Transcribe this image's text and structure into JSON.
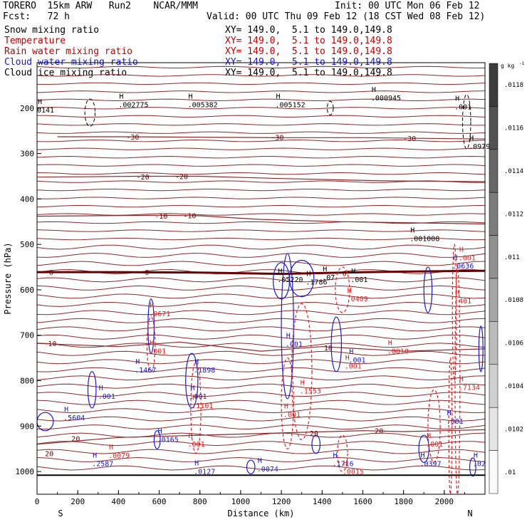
{
  "header": {
    "model": "TORERO  15km ARW   Run2    NCAR/MMM",
    "init": "Init: 00 UTC Mon 06 Feb 12",
    "fcst": "Fcst:   72 h",
    "valid": "Valid: 00 UTC Thu 09 Feb 12 (18 CST Wed 08 Feb 12)"
  },
  "fields": [
    {
      "name": "Snow mixing ratio",
      "xy": "XY= 149.0,  5.1 to 149.0,149.8",
      "color": "#000000"
    },
    {
      "name": "Temperature",
      "xy": "XY= 149.0,  5.1 to 149.0,149.8",
      "color": "#c00000"
    },
    {
      "name": "Rain water mixing ratio",
      "xy": "XY= 149.0,  5.1 to 149.0,149.8",
      "color": "#c00000"
    },
    {
      "name": "Cloud water mixing ratio",
      "xy": "XY= 149.0,  5.1 to 149.0,149.8",
      "color": "#1a1acc"
    },
    {
      "name": "Cloud ice mixing ratio",
      "xy": "XY= 149.0,  5.1 to 149.0,149.8",
      "color": "#000000"
    }
  ],
  "chart_data": {
    "type": "contour-cross-section",
    "xlabel": "Distance (km)",
    "ylabel": "Pressure (hPa)",
    "xlim": [
      0,
      2200
    ],
    "ylim": [
      1050,
      100
    ],
    "x_ticks": [
      0,
      200,
      400,
      600,
      800,
      1000,
      1200,
      1400,
      1600,
      1800,
      2000
    ],
    "y_ticks": [
      200,
      300,
      400,
      500,
      600,
      700,
      800,
      900,
      1000
    ],
    "endpoint_labels": {
      "left": "S",
      "right": "N"
    },
    "temperature_contours": [
      {
        "label": "-30",
        "points": [
          [
            100,
            263
          ],
          [
            400,
            263
          ],
          [
            1200,
            265
          ],
          [
            1600,
            265
          ],
          [
            2200,
            268
          ]
        ]
      },
      {
        "label": "-20",
        "points": [
          [
            0,
            352
          ],
          [
            500,
            350
          ],
          [
            800,
            350
          ],
          [
            1200,
            355
          ],
          [
            1700,
            360
          ],
          [
            2200,
            362
          ]
        ]
      },
      {
        "label": "-10",
        "points": [
          [
            0,
            438
          ],
          [
            600,
            436
          ],
          [
            800,
            437
          ],
          [
            1100,
            445
          ],
          [
            1500,
            450
          ],
          [
            2200,
            455
          ]
        ]
      },
      {
        "label": "0",
        "points": [
          [
            0,
            561
          ],
          [
            400,
            561
          ],
          [
            800,
            562
          ],
          [
            1200,
            565
          ],
          [
            1500,
            562
          ],
          [
            1800,
            560
          ],
          [
            2200,
            558
          ]
        ]
      },
      {
        "label": "10",
        "points": [
          [
            0,
            718
          ],
          [
            400,
            725
          ],
          [
            700,
            715
          ],
          [
            1100,
            735
          ],
          [
            1400,
            725
          ],
          [
            1800,
            735
          ],
          [
            2200,
            730
          ]
        ]
      },
      {
        "label": "20",
        "points": [
          [
            0,
            940
          ],
          [
            400,
            925
          ],
          [
            800,
            920
          ],
          [
            1200,
            915
          ],
          [
            1600,
            910
          ],
          [
            1800,
            912
          ],
          [
            2200,
            908
          ]
        ]
      }
    ],
    "temperature_labels": [
      {
        "x": 470,
        "p": 263,
        "text": "-30"
      },
      {
        "x": 1180,
        "p": 264,
        "text": "-30"
      },
      {
        "x": 1830,
        "p": 266,
        "text": "-30"
      },
      {
        "x": 520,
        "p": 351,
        "text": "-20"
      },
      {
        "x": 710,
        "p": 350,
        "text": "-20"
      },
      {
        "x": 610,
        "p": 437,
        "text": "-10"
      },
      {
        "x": 750,
        "p": 436,
        "text": "-10"
      },
      {
        "x": 70,
        "p": 561,
        "text": "0"
      },
      {
        "x": 540,
        "p": 561,
        "text": "0"
      },
      {
        "x": 1510,
        "p": 563,
        "text": "0"
      },
      {
        "x": 75,
        "p": 718,
        "text": "10"
      },
      {
        "x": 1430,
        "p": 727,
        "text": "10"
      },
      {
        "x": 190,
        "p": 927,
        "text": "20"
      },
      {
        "x": 1360,
        "p": 915,
        "text": "20"
      },
      {
        "x": 1680,
        "p": 910,
        "text": "20"
      },
      {
        "x": 60,
        "p": 960,
        "text": "20"
      }
    ],
    "snow_maxima": [
      {
        "x": 400,
        "p": 198,
        "text": ".002775"
      },
      {
        "x": 740,
        "p": 198,
        "text": ".005382"
      },
      {
        "x": 1170,
        "p": 198,
        "text": ".005152"
      },
      {
        "x": 1640,
        "p": 183,
        "text": ".000945"
      },
      {
        "x": 2050,
        "p": 203,
        "text": ".001"
      },
      {
        "x": 2120,
        "p": 290,
        "text": ".09794"
      },
      {
        "x": 0,
        "p": 210,
        "text": "0141"
      },
      {
        "x": 1830,
        "p": 493,
        "text": ".001008"
      }
    ],
    "cloud_water_maxima": [
      {
        "x": 480,
        "p": 782,
        "text": ".1467"
      },
      {
        "x": 770,
        "p": 782,
        "text": ".1898"
      },
      {
        "x": 750,
        "p": 840,
        "text": ".001"
      },
      {
        "x": 300,
        "p": 840,
        "text": ".001"
      },
      {
        "x": 130,
        "p": 887,
        "text": ".5604"
      },
      {
        "x": 590,
        "p": 935,
        "text": ".0165"
      },
      {
        "x": 1080,
        "p": 1000,
        "text": ".0074"
      },
      {
        "x": 1450,
        "p": 988,
        "text": ".1716"
      },
      {
        "x": 270,
        "p": 988,
        "text": ".2587"
      },
      {
        "x": 770,
        "p": 1005,
        "text": ".0127"
      },
      {
        "x": 1880,
        "p": 988,
        "text": ".0397"
      },
      {
        "x": 2140,
        "p": 988,
        "text": ".02"
      },
      {
        "x": 1220,
        "p": 725,
        "text": ".001"
      },
      {
        "x": 1530,
        "p": 760,
        "text": ".001"
      },
      {
        "x": 2010,
        "p": 895,
        "text": ".001"
      },
      {
        "x": 2040,
        "p": 553,
        "text": ".0636"
      }
    ],
    "rain_maxima": [
      {
        "x": 550,
        "p": 658,
        "text": ".0671"
      },
      {
        "x": 550,
        "p": 740,
        "text": ".001"
      },
      {
        "x": 1290,
        "p": 828,
        "text": ".1553"
      },
      {
        "x": 1210,
        "p": 880,
        "text": ".001"
      },
      {
        "x": 1510,
        "p": 773,
        "text": ".001"
      },
      {
        "x": 1520,
        "p": 625,
        "text": ".0409"
      },
      {
        "x": 1720,
        "p": 740,
        "text": ".0010"
      },
      {
        "x": 2070,
        "p": 820,
        "text": ".7134"
      },
      {
        "x": 760,
        "p": 860,
        "text": ".1101"
      },
      {
        "x": 740,
        "p": 945,
        "text": ".001"
      },
      {
        "x": 350,
        "p": 970,
        "text": ".0079"
      },
      {
        "x": 1500,
        "p": 1005,
        "text": ".0015"
      },
      {
        "x": 1910,
        "p": 945,
        "text": ".001"
      },
      {
        "x": 2070,
        "p": 535,
        "text": ".001"
      },
      {
        "x": 2050,
        "p": 630,
        "text": ".401"
      }
    ],
    "cloud_ice_maxima": [
      {
        "x": 1180,
        "p": 583,
        "text": ".05220"
      },
      {
        "x": 1320,
        "p": 588,
        "text": ".1786"
      },
      {
        "x": 1400,
        "p": 578,
        "text": ".07"
      },
      {
        "x": 1540,
        "p": 583,
        "text": ".001"
      }
    ],
    "colorbar": {
      "unit_label": "g kg",
      "ticks": [
        ".0118",
        ".0116",
        ".0114",
        ".0112",
        ".011",
        ".0108",
        ".0106",
        ".0104",
        ".0102",
        ".01"
      ]
    }
  }
}
